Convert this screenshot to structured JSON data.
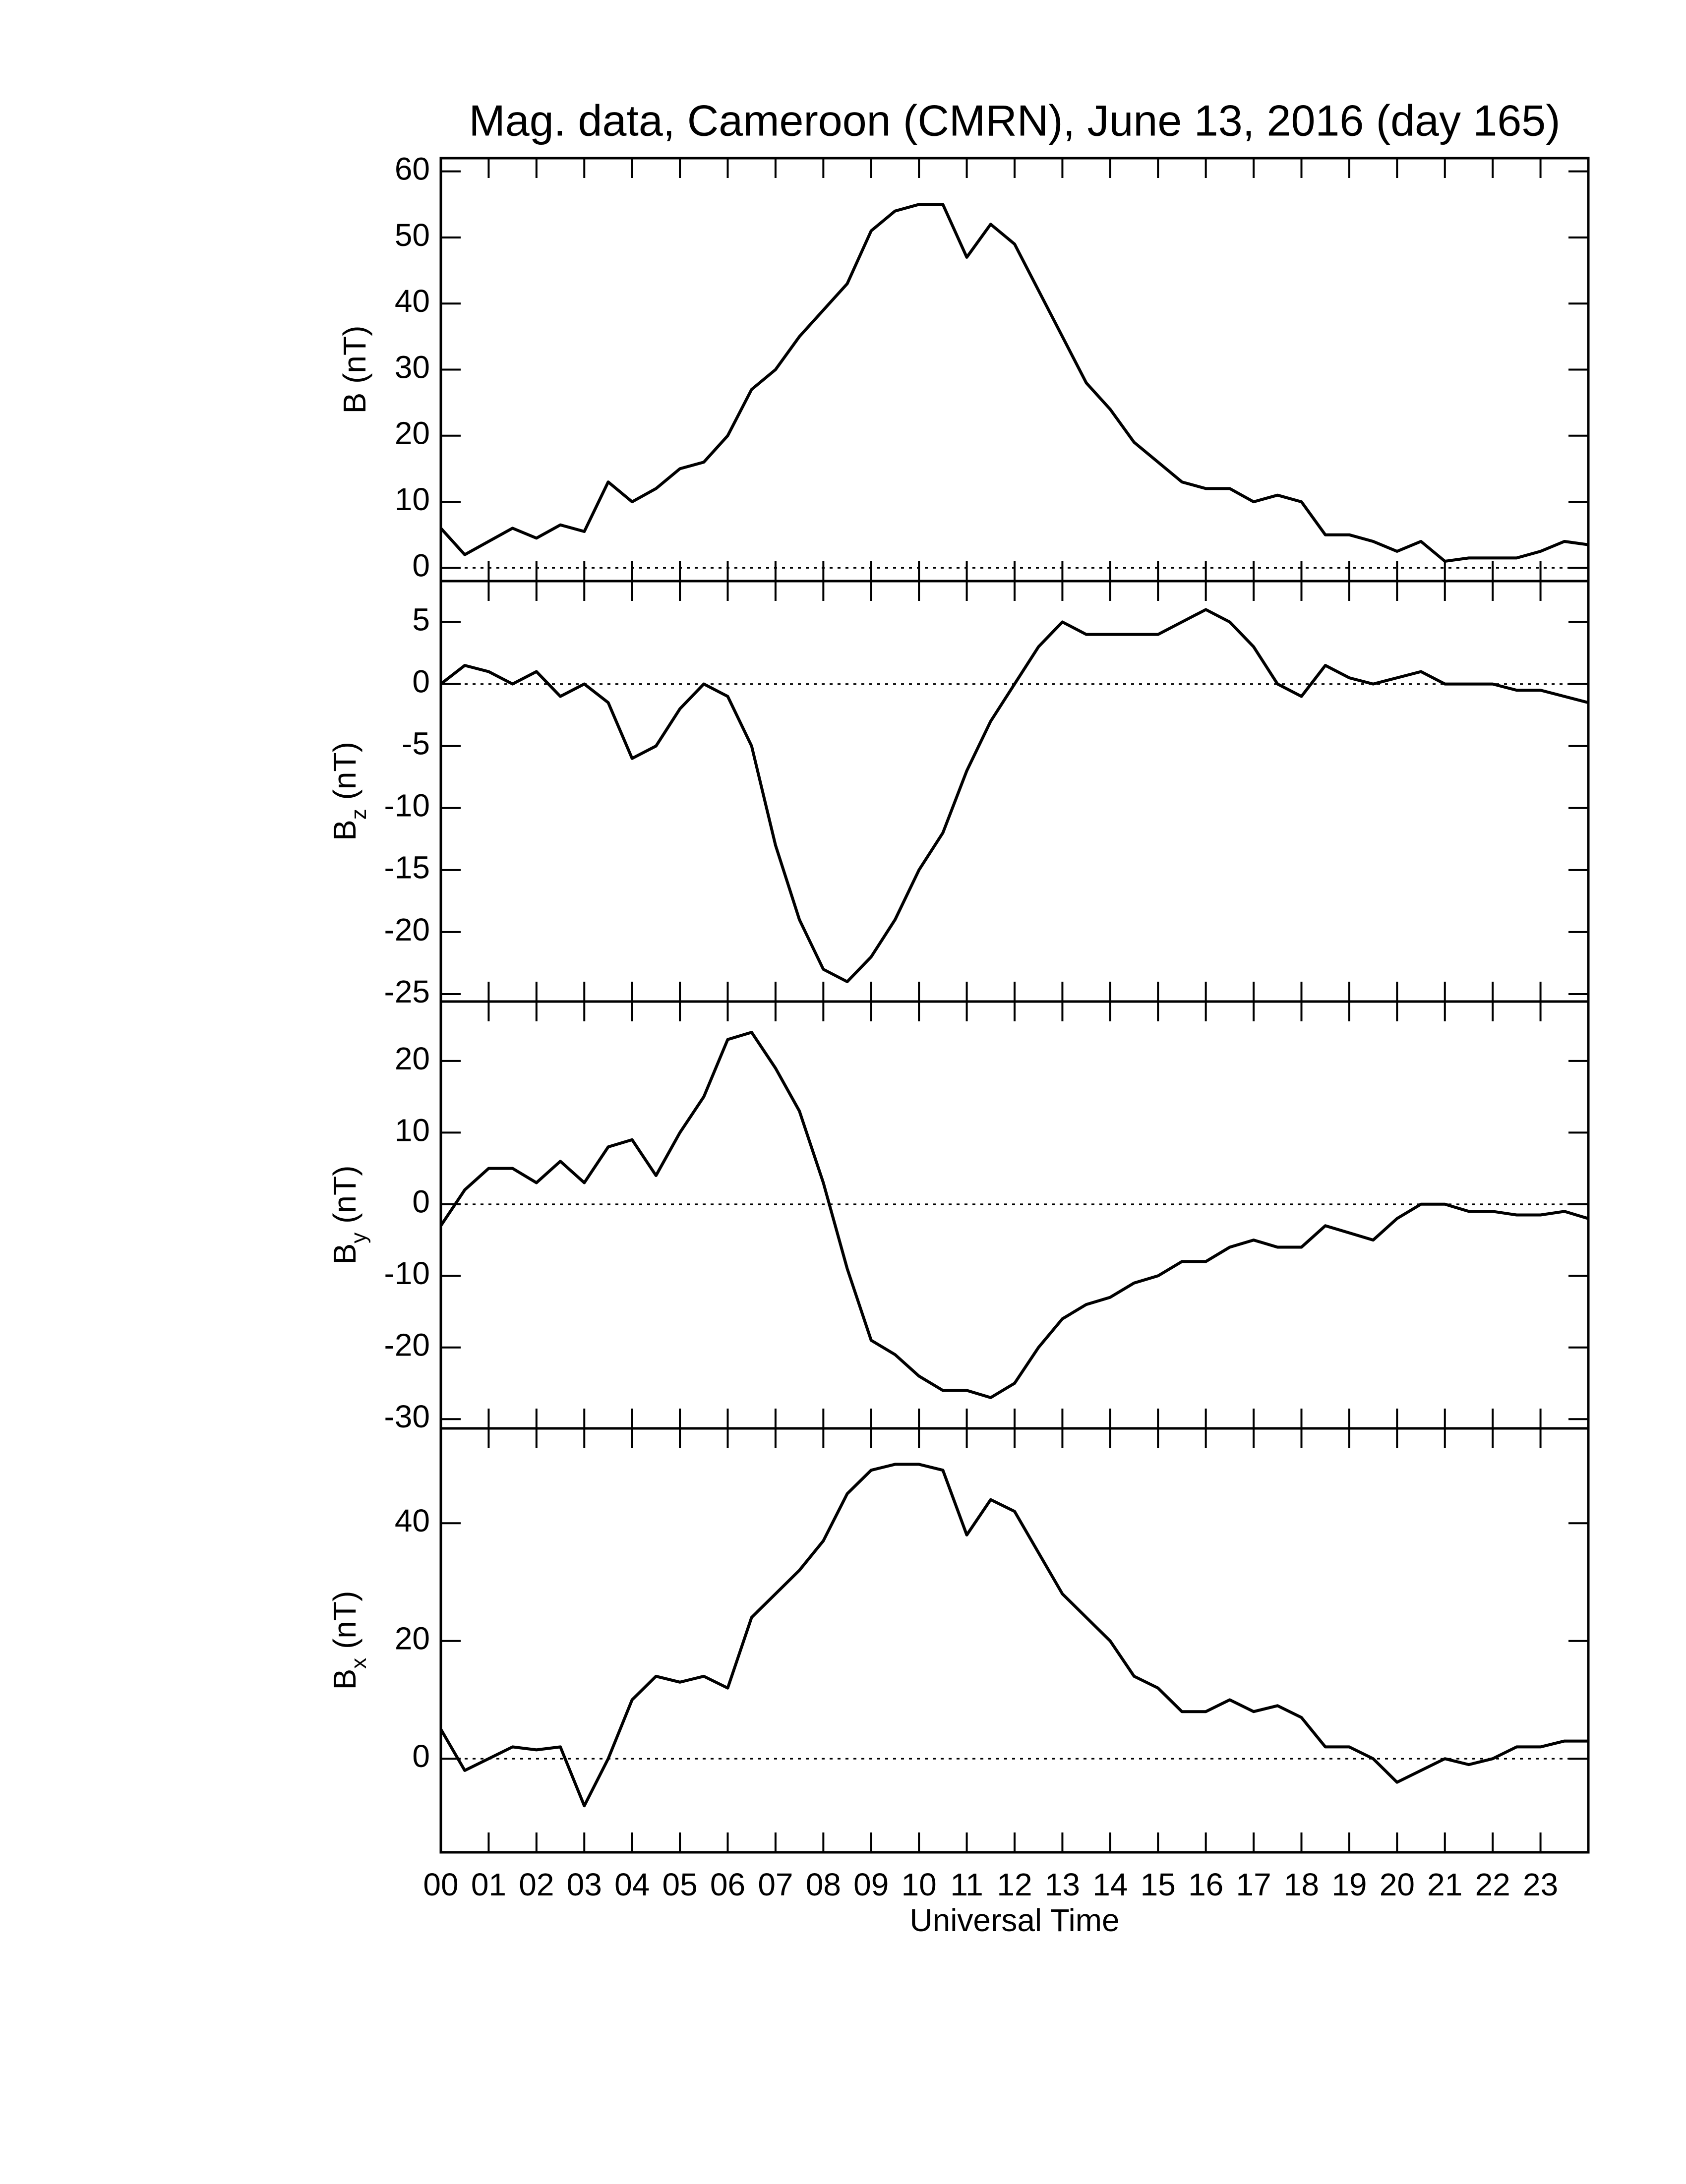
{
  "chart_data": [
    {
      "type": "line",
      "title": "Mag. data, Cameroon (CMRN), June 13, 2016 (day 165)",
      "ylabel_symbol": "B",
      "ylabel_unit": "(nT)",
      "color": "#000000",
      "zero_line": true,
      "xlim": [
        0,
        24
      ],
      "ylim": [
        -2,
        62
      ],
      "yticks": [
        0,
        10,
        20,
        30,
        40,
        50,
        60
      ],
      "x": [
        0,
        0.5,
        1,
        1.5,
        2,
        2.5,
        3,
        3.5,
        4,
        4.5,
        5,
        5.5,
        6,
        6.5,
        7,
        7.5,
        8,
        8.5,
        9,
        9.5,
        10,
        10.5,
        11,
        11.5,
        12,
        12.5,
        13,
        13.5,
        14,
        14.5,
        15,
        15.5,
        16,
        16.5,
        17,
        17.5,
        18,
        18.5,
        19,
        19.5,
        20,
        20.5,
        21,
        21.5,
        22,
        22.5,
        23,
        23.5,
        24
      ],
      "values": [
        6,
        2,
        4,
        6,
        4.5,
        6.5,
        5.5,
        13,
        10,
        12,
        15,
        16,
        20,
        27,
        30,
        35,
        39,
        43,
        51,
        54,
        55,
        55,
        47,
        52,
        49,
        42,
        35,
        28,
        24,
        19,
        16,
        13,
        12,
        12,
        10,
        11,
        10,
        5,
        5,
        4,
        2.5,
        4,
        1,
        1.5,
        1.5,
        1.5,
        2.5,
        4,
        3.5
      ]
    },
    {
      "type": "line",
      "ylabel_symbol": "B",
      "ylabel_subscript": "z",
      "ylabel_unit": "(nT)",
      "color": "#000000",
      "zero_line": true,
      "xlim": [
        0,
        24
      ],
      "ylim": [
        -25.6,
        8.3
      ],
      "yticks": [
        -25,
        -20,
        -15,
        -10,
        -5,
        0,
        5
      ],
      "x": [
        0,
        0.5,
        1,
        1.5,
        2,
        2.5,
        3,
        3.5,
        4,
        4.5,
        5,
        5.5,
        6,
        6.5,
        7,
        7.5,
        8,
        8.5,
        9,
        9.5,
        10,
        10.5,
        11,
        11.5,
        12,
        12.5,
        13,
        13.5,
        14,
        14.5,
        15,
        15.5,
        16,
        16.5,
        17,
        17.5,
        18,
        18.5,
        19,
        19.5,
        20,
        20.5,
        21,
        21.5,
        22,
        22.5,
        23,
        23.5,
        24
      ],
      "values": [
        0,
        1.5,
        1,
        0,
        1,
        -1,
        0,
        -1.5,
        -6,
        -5,
        -2,
        0,
        -1,
        -5,
        -13,
        -19,
        -23,
        -24,
        -22,
        -19,
        -15,
        -12,
        -7,
        -3,
        0,
        3,
        5,
        4,
        4,
        4,
        4,
        5,
        6,
        5,
        3,
        0,
        -1,
        1.5,
        0.5,
        0,
        0.5,
        1,
        0,
        0,
        0,
        -0.5,
        -0.5,
        -1,
        -1.5
      ]
    },
    {
      "type": "line",
      "ylabel_symbol": "B",
      "ylabel_subscript": "y",
      "ylabel_unit": "(nT)",
      "color": "#000000",
      "zero_line": true,
      "xlim": [
        0,
        24
      ],
      "ylim": [
        -31.3,
        28.3
      ],
      "yticks": [
        -30,
        -20,
        -10,
        0,
        10,
        20
      ],
      "x": [
        0,
        0.5,
        1,
        1.5,
        2,
        2.5,
        3,
        3.5,
        4,
        4.5,
        5,
        5.5,
        6,
        6.5,
        7,
        7.5,
        8,
        8.5,
        9,
        9.5,
        10,
        10.5,
        11,
        11.5,
        12,
        12.5,
        13,
        13.5,
        14,
        14.5,
        15,
        15.5,
        16,
        16.5,
        17,
        17.5,
        18,
        18.5,
        19,
        19.5,
        20,
        20.5,
        21,
        21.5,
        22,
        22.5,
        23,
        23.5,
        24
      ],
      "values": [
        -3,
        2,
        5,
        5,
        3,
        6,
        3,
        8,
        9,
        4,
        10,
        15,
        23,
        24,
        19,
        13,
        3,
        -9,
        -19,
        -21,
        -24,
        -26,
        -26,
        -27,
        -25,
        -20,
        -16,
        -14,
        -13,
        -11,
        -10,
        -8,
        -8,
        -6,
        -5,
        -6,
        -6,
        -3,
        -4,
        -5,
        -2,
        0,
        0,
        -1,
        -1,
        -1.5,
        -1.5,
        -1,
        -2
      ]
    },
    {
      "type": "line",
      "ylabel_symbol": "B",
      "ylabel_subscript": "x",
      "ylabel_unit": "(nT)",
      "color": "#000000",
      "zero_line": true,
      "xlabel": "Universal Time",
      "xlim": [
        0,
        24
      ],
      "ylim": [
        -15.9,
        56.1
      ],
      "yticks": [
        0,
        20,
        40
      ],
      "xticks": [
        {
          "value": 0,
          "label": "00"
        },
        {
          "value": 1,
          "label": "01"
        },
        {
          "value": 2,
          "label": "02"
        },
        {
          "value": 3,
          "label": "03"
        },
        {
          "value": 4,
          "label": "04"
        },
        {
          "value": 5,
          "label": "05"
        },
        {
          "value": 6,
          "label": "06"
        },
        {
          "value": 7,
          "label": "07"
        },
        {
          "value": 8,
          "label": "08"
        },
        {
          "value": 9,
          "label": "09"
        },
        {
          "value": 10,
          "label": "10"
        },
        {
          "value": 11,
          "label": "11"
        },
        {
          "value": 12,
          "label": "12"
        },
        {
          "value": 13,
          "label": "13"
        },
        {
          "value": 14,
          "label": "14"
        },
        {
          "value": 15,
          "label": "15"
        },
        {
          "value": 16,
          "label": "16"
        },
        {
          "value": 17,
          "label": "17"
        },
        {
          "value": 18,
          "label": "18"
        },
        {
          "value": 19,
          "label": "19"
        },
        {
          "value": 20,
          "label": "20"
        },
        {
          "value": 21,
          "label": "21"
        },
        {
          "value": 22,
          "label": "22"
        },
        {
          "value": 23,
          "label": "23"
        }
      ],
      "x": [
        0,
        0.5,
        1,
        1.5,
        2,
        2.5,
        3,
        3.5,
        4,
        4.5,
        5,
        5.5,
        6,
        6.5,
        7,
        7.5,
        8,
        8.5,
        9,
        9.5,
        10,
        10.5,
        11,
        11.5,
        12,
        12.5,
        13,
        13.5,
        14,
        14.5,
        15,
        15.5,
        16,
        16.5,
        17,
        17.5,
        18,
        18.5,
        19,
        19.5,
        20,
        20.5,
        21,
        21.5,
        22,
        22.5,
        23,
        23.5,
        24
      ],
      "values": [
        5,
        -2,
        0,
        2,
        1.5,
        2,
        -8,
        0,
        10,
        14,
        13,
        14,
        12,
        24,
        28,
        32,
        37,
        45,
        49,
        50,
        50,
        49,
        38,
        44,
        42,
        35,
        28,
        24,
        20,
        14,
        12,
        8,
        8,
        10,
        8,
        9,
        7,
        2,
        2,
        0,
        -4,
        -2,
        0,
        -1,
        0,
        2,
        2,
        3,
        3
      ]
    }
  ]
}
